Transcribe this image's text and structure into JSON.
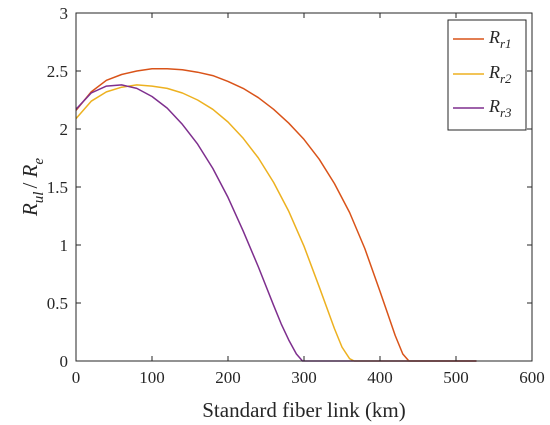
{
  "chart_data": {
    "type": "line",
    "xlabel": "Standard fiber link (km)",
    "ylabel": {
      "main": "R",
      "sub1": "ul",
      "sep": "/ ",
      "main2": "R",
      "sub2": "e"
    },
    "xlim": [
      0,
      600
    ],
    "ylim": [
      0,
      3
    ],
    "xticks": [
      0,
      100,
      200,
      300,
      400,
      500,
      600
    ],
    "yticks": [
      0,
      0.5,
      1,
      1.5,
      2,
      2.5,
      3
    ],
    "ytick_labels": [
      "0",
      "0.5",
      "1",
      "1.5",
      "2",
      "2.5",
      "3"
    ],
    "grid": false,
    "legend_position": "top-right",
    "series": [
      {
        "name": "R",
        "name_sub": "r1",
        "color": "#D95319",
        "x": [
          0,
          20,
          40,
          60,
          80,
          100,
          120,
          140,
          160,
          180,
          200,
          220,
          240,
          260,
          280,
          300,
          320,
          340,
          360,
          380,
          400,
          410,
          420,
          430,
          438,
          450,
          480,
          500,
          527
        ],
        "y": [
          2.16,
          2.32,
          2.42,
          2.47,
          2.5,
          2.52,
          2.52,
          2.51,
          2.49,
          2.46,
          2.41,
          2.35,
          2.27,
          2.17,
          2.05,
          1.91,
          1.74,
          1.53,
          1.28,
          0.97,
          0.6,
          0.41,
          0.22,
          0.06,
          0.0,
          0.0,
          0.0,
          0.0,
          0.0
        ]
      },
      {
        "name": "R",
        "name_sub": "r2",
        "color": "#EDB120",
        "x": [
          0,
          20,
          40,
          60,
          80,
          100,
          120,
          140,
          160,
          180,
          200,
          220,
          240,
          260,
          280,
          300,
          320,
          340,
          350,
          360,
          366,
          380,
          420,
          460,
          527
        ],
        "y": [
          2.09,
          2.24,
          2.32,
          2.36,
          2.38,
          2.37,
          2.35,
          2.31,
          2.25,
          2.17,
          2.06,
          1.92,
          1.75,
          1.54,
          1.29,
          0.99,
          0.64,
          0.28,
          0.12,
          0.02,
          0.0,
          0.0,
          0.0,
          0.0,
          0.0
        ]
      },
      {
        "name": "R",
        "name_sub": "r3",
        "color": "#7E2F8E",
        "x": [
          0,
          20,
          40,
          60,
          80,
          100,
          120,
          140,
          160,
          180,
          200,
          220,
          240,
          260,
          270,
          280,
          290,
          298,
          320,
          380,
          440,
          527
        ],
        "y": [
          2.17,
          2.31,
          2.37,
          2.38,
          2.35,
          2.28,
          2.18,
          2.04,
          1.87,
          1.66,
          1.41,
          1.12,
          0.81,
          0.48,
          0.32,
          0.18,
          0.06,
          0.0,
          0.0,
          0.0,
          0.0,
          0.0
        ]
      }
    ]
  }
}
